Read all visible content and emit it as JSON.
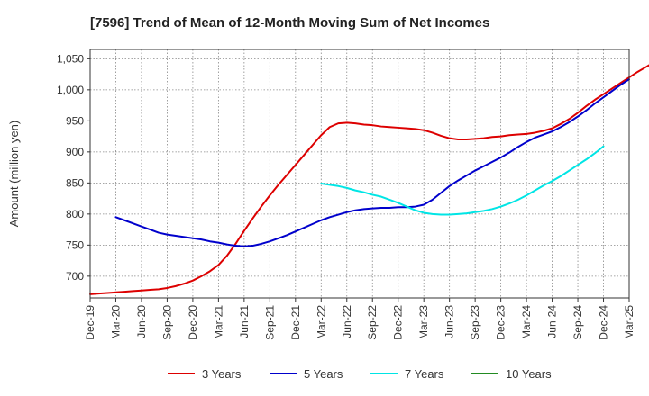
{
  "chart_data": {
    "type": "line",
    "title": "[7596]  Trend of Mean of 12-Month Moving Sum of Net Incomes",
    "xlabel": "",
    "ylabel": "Amount (million yen)",
    "ylim": [
      665,
      1065
    ],
    "y_ticks": [
      700,
      750,
      800,
      850,
      900,
      950,
      1000,
      1050
    ],
    "y_tick_labels": [
      "700",
      "750",
      "800",
      "850",
      "900",
      "950",
      "1,000",
      "1,050"
    ],
    "x_ticks": [
      "Dec-19",
      "Mar-20",
      "Jun-20",
      "Sep-20",
      "Dec-20",
      "Mar-21",
      "Jun-21",
      "Sep-21",
      "Dec-21",
      "Mar-22",
      "Jun-22",
      "Sep-22",
      "Dec-22",
      "Mar-23",
      "Jun-23",
      "Sep-23",
      "Dec-23",
      "Mar-24",
      "Jun-24",
      "Sep-24",
      "Dec-24",
      "Mar-25"
    ],
    "grid": true,
    "legend_position": "bottom",
    "series": [
      {
        "name": "3 Years",
        "color": "#dd0000",
        "start_index": 0,
        "values": [
          671,
          672,
          673,
          674,
          675,
          676,
          677,
          678,
          679,
          681,
          684,
          688,
          693,
          700,
          708,
          718,
          733,
          752,
          773,
          793,
          812,
          830,
          847,
          863,
          879,
          895,
          911,
          927,
          940,
          946,
          947,
          946,
          944,
          943,
          941,
          940,
          939,
          938,
          937,
          935,
          931,
          926,
          922,
          920,
          920,
          921,
          922,
          924,
          925,
          927,
          928,
          929,
          931,
          934,
          938,
          945,
          953,
          963,
          974,
          984,
          993,
          1002,
          1011,
          1020,
          1029,
          1037,
          1045,
          1053
        ]
      },
      {
        "name": "5 Years",
        "color": "#0000cc",
        "start_index": 3,
        "values": [
          795,
          790,
          785,
          780,
          775,
          770,
          767,
          765,
          763,
          761,
          759,
          756,
          754,
          751,
          749,
          748,
          749,
          752,
          756,
          761,
          766,
          772,
          778,
          784,
          790,
          795,
          799,
          803,
          806,
          808,
          809,
          810,
          810,
          811,
          811,
          812,
          815,
          823,
          834,
          845,
          854,
          862,
          870,
          877,
          884,
          891,
          899,
          908,
          916,
          923,
          928,
          933,
          940,
          948,
          957,
          967,
          978,
          988,
          998,
          1008,
          1017
        ]
      },
      {
        "name": "7 Years",
        "color": "#00e5e5",
        "start_index": 27,
        "values": [
          849,
          847,
          845,
          842,
          838,
          835,
          831,
          828,
          823,
          818,
          812,
          806,
          802,
          800,
          799,
          799,
          800,
          801,
          803,
          805,
          808,
          812,
          817,
          823,
          830,
          838,
          846,
          853,
          861,
          870,
          879,
          888,
          898,
          909
        ]
      },
      {
        "name": "10 Years",
        "color": "#228b22",
        "start_index": 0,
        "values": []
      }
    ]
  }
}
